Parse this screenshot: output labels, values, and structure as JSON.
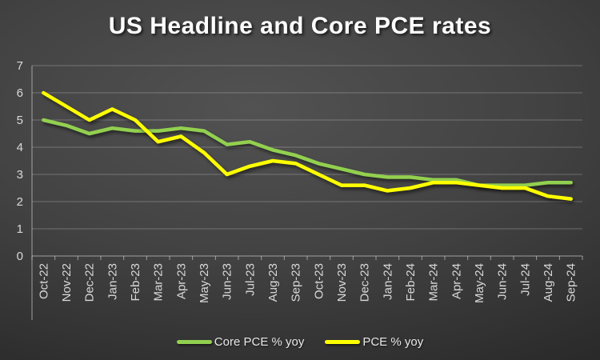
{
  "title": "US Headline and Core PCE rates",
  "colors": {
    "core_line": "#92d050",
    "pce_line": "#ffff00",
    "axis_text": "#d9d9d9",
    "title_text": "#ffffff",
    "background_center": "#525252",
    "background_edge": "#1c1c1c"
  },
  "legend": {
    "items": [
      {
        "label": "Core PCE % yoy",
        "color": "#92d050"
      },
      {
        "label": "PCE % yoy",
        "color": "#ffff00"
      }
    ]
  },
  "chart_data": {
    "type": "line",
    "title": "US Headline and Core PCE rates",
    "categories": [
      "Oct-22",
      "Nov-22",
      "Dec-22",
      "Jan-23",
      "Feb-23",
      "Mar-23",
      "Apr-23",
      "May-23",
      "Jun-23",
      "Jul-23",
      "Aug-23",
      "Sep-23",
      "Oct-23",
      "Nov-23",
      "Dec-23",
      "Jan-24",
      "Feb-24",
      "Mar-24",
      "Apr-24",
      "May-24",
      "Jun-24",
      "Jul-24",
      "Aug-24",
      "Sep-24"
    ],
    "series": [
      {
        "name": "Core PCE % yoy",
        "color": "#92d050",
        "values": [
          5.0,
          4.8,
          4.5,
          4.7,
          4.6,
          4.6,
          4.7,
          4.6,
          4.1,
          4.2,
          3.9,
          3.7,
          3.4,
          3.2,
          3.0,
          2.9,
          2.9,
          2.8,
          2.8,
          2.6,
          2.6,
          2.6,
          2.7,
          2.7
        ]
      },
      {
        "name": "PCE % yoy",
        "color": "#ffff00",
        "values": [
          6.0,
          5.5,
          5.0,
          5.4,
          5.0,
          4.2,
          4.4,
          3.8,
          3.0,
          3.3,
          3.5,
          3.4,
          3.0,
          2.6,
          2.6,
          2.4,
          2.5,
          2.7,
          2.7,
          2.6,
          2.5,
          2.5,
          2.2,
          2.1
        ]
      }
    ],
    "xlabel": "",
    "ylabel": "",
    "ylim": [
      0,
      7
    ],
    "yticks": [
      0,
      1,
      2,
      3,
      4,
      5,
      6,
      7
    ],
    "grid": true,
    "legend_position": "bottom",
    "x_label_rotation": -90
  }
}
